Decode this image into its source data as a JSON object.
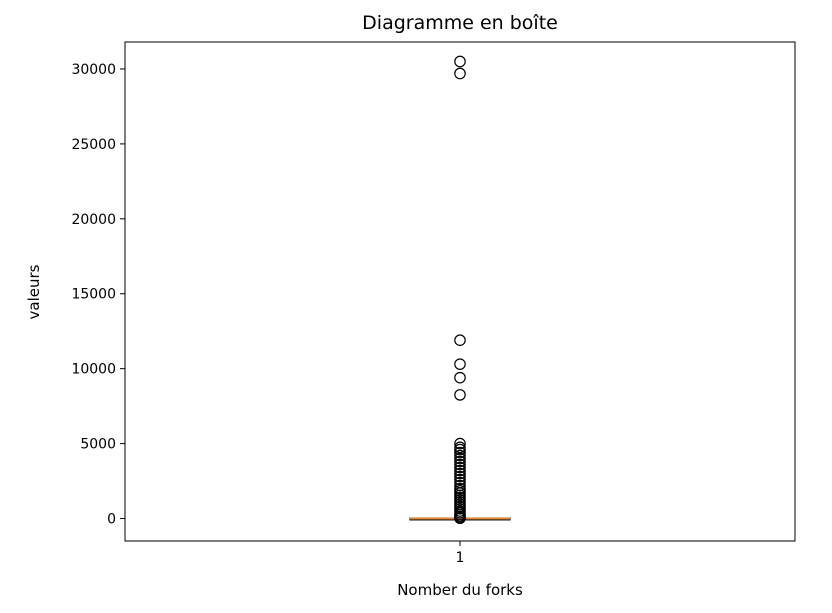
{
  "chart_data": {
    "type": "box",
    "title": "Diagramme en boîte",
    "xlabel": "Nomber du forks",
    "ylabel": "valeurs",
    "categories": [
      "1"
    ],
    "y_ticks": [
      0,
      5000,
      10000,
      15000,
      20000,
      25000,
      30000
    ],
    "y_tick_labels": [
      "0",
      "5000",
      "10000",
      "15000",
      "20000",
      "25000",
      "30000"
    ],
    "ylim": [
      -1500,
      31800
    ],
    "grid": false,
    "box": {
      "median": 0,
      "q1": 0,
      "q3": 5,
      "whisker_low": 0,
      "whisker_high": 12
    },
    "outliers": [
      30500,
      29700,
      11900,
      10300,
      9400,
      8250,
      5000,
      4750,
      4600,
      4400,
      4200,
      4000,
      3800,
      3600,
      3400,
      3200,
      3000,
      2800,
      2600,
      2400,
      2200,
      2000,
      1850,
      1700,
      1550,
      1400,
      1250,
      1100,
      950,
      800,
      650,
      500,
      380,
      260,
      150,
      60,
      20
    ],
    "colors": {
      "median": "#e08a36",
      "box": "#000000",
      "outlier_edge": "#000000"
    }
  }
}
